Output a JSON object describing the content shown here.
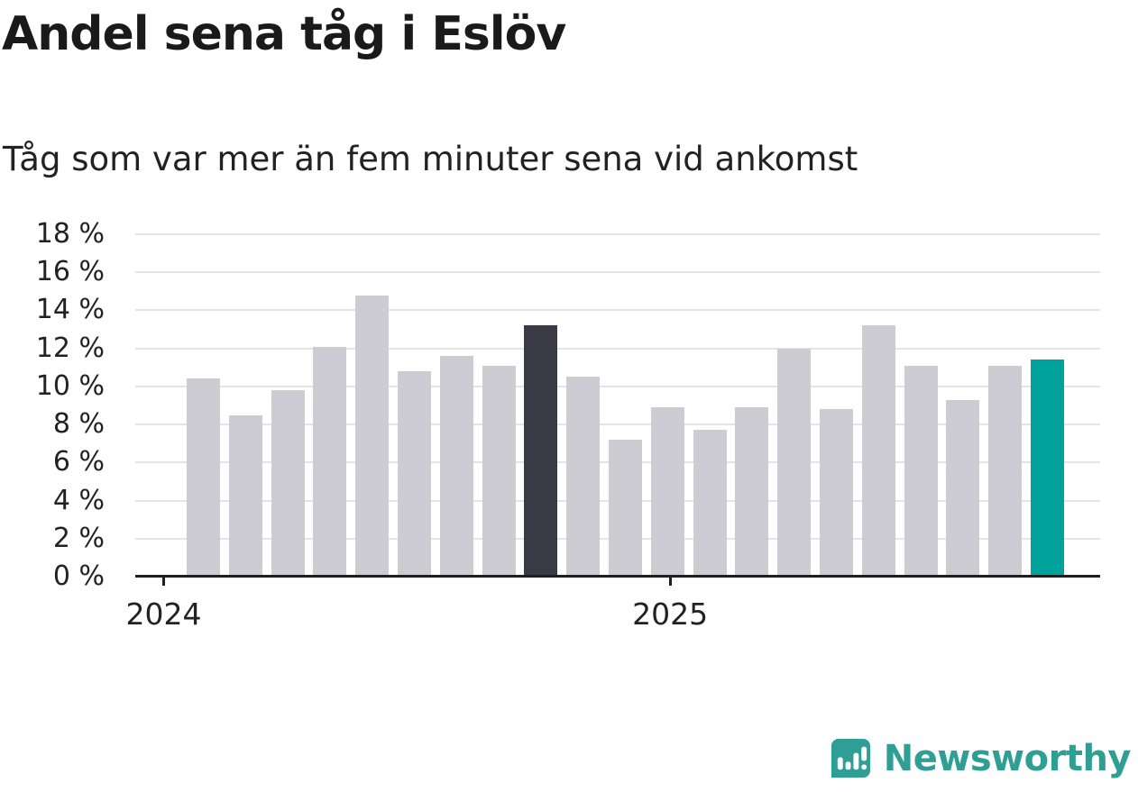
{
  "chart_data": {
    "type": "bar",
    "title": "Andel sena tåg i Eslöv",
    "subtitle": "Tåg som var mer än fem minuter sena vid ankomst",
    "unit": "%",
    "n_bars": 21,
    "values": [
      10.4,
      8.5,
      9.8,
      12.1,
      14.8,
      10.8,
      11.6,
      11.1,
      13.2,
      10.5,
      7.2,
      8.9,
      7.7,
      8.9,
      12.0,
      8.8,
      13.2,
      11.1,
      9.3,
      11.1,
      11.4
    ],
    "highlight_index": 8,
    "latest_index": 20,
    "ylim": [
      0,
      18
    ],
    "yticks": [
      0,
      2,
      4,
      6,
      8,
      10,
      12,
      14,
      16,
      18
    ],
    "ytick_suffix": " %",
    "xticks": [
      {
        "label": "2024",
        "bar_index": 0
      },
      {
        "label": "2025",
        "bar_index": 12
      }
    ],
    "grid": true,
    "legend": false,
    "colors": {
      "bar_default": "#cdccd3",
      "bar_highlight": "#3a3a46",
      "bar_latest": "#00a39b"
    }
  },
  "footer": {
    "brand": "Newsworthy",
    "brand_color": "#2f9e94"
  }
}
